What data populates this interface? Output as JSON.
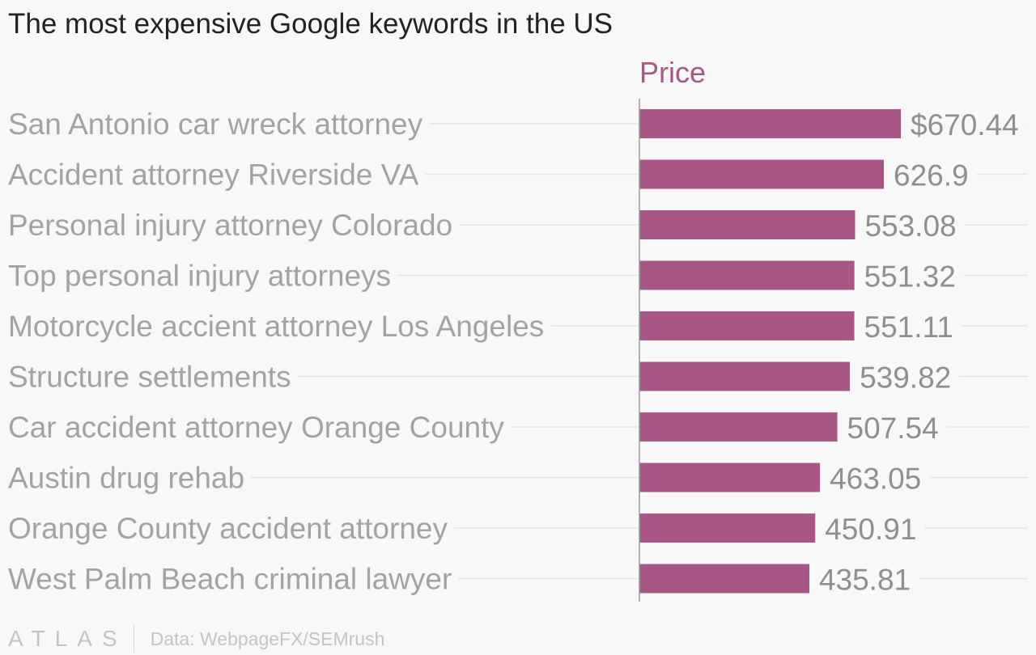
{
  "header": {
    "title": "The most expensive Google keywords in the US"
  },
  "footer": {
    "brand": "ATLAS",
    "source": "Data: WebpageFX/SEMrush"
  },
  "chart_data": {
    "type": "bar",
    "orientation": "horizontal",
    "title": "The most expensive Google keywords in the US",
    "series_label": "Price",
    "categories": [
      "San Antonio car wreck attorney",
      "Accident attorney Riverside VA",
      "Personal injury attorney Colorado",
      "Top personal injury attorneys",
      "Motorcycle accient attorney Los Angeles",
      "Structure settlements",
      "Car accident attorney Orange County",
      "Austin drug rehab",
      "Orange County accident attorney",
      "West Palm Beach criminal lawyer"
    ],
    "values": [
      670.44,
      626.9,
      553.08,
      551.32,
      551.11,
      539.82,
      507.54,
      463.05,
      450.91,
      435.81
    ],
    "value_labels": [
      "$670.44",
      "626.9",
      "553.08",
      "551.32",
      "551.11",
      "539.82",
      "507.54",
      "463.05",
      "450.91",
      "435.81"
    ],
    "xlim": [
      0,
      670.44
    ],
    "grid": true,
    "legend": "none",
    "colors": {
      "bar": "#a85685",
      "series_label": "#a85685",
      "category_text": "#a3a3a3",
      "value_text": "#8f8f8f",
      "gridline": "#e4e4e4",
      "axis": "#9a9a9a"
    }
  }
}
